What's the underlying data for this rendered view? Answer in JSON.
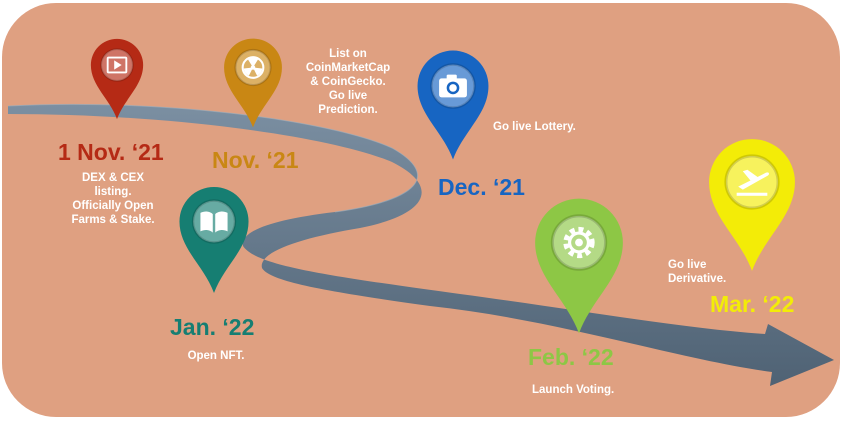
{
  "colors": {
    "background": "#dfa081",
    "road": "#596d80",
    "red": "#b52a15",
    "orange": "#c98714",
    "teal": "#167e72",
    "blue": "#1765c2",
    "green": "#8dc745",
    "yellow": "#f3ec07"
  },
  "milestones": [
    {
      "date": "1 Nov. ‘21",
      "lines": [
        "DEX & CEX",
        "listing.",
        "Officially Open",
        "Farms & Stake."
      ],
      "color": "#b52a15",
      "icon": "video-icon"
    },
    {
      "date": "Nov. ‘21",
      "lines": [
        "List on",
        "CoinMarketCap",
        "& CoinGecko.",
        "Go live",
        "Prediction."
      ],
      "color": "#c98714",
      "icon": "radiation-icon"
    },
    {
      "date": "Jan. ‘22",
      "lines": [
        "Open NFT."
      ],
      "color": "#167e72",
      "icon": "book-icon"
    },
    {
      "date": "Dec. ‘21",
      "lines": [
        "Go live Lottery."
      ],
      "color": "#1765c2",
      "icon": "camera-icon"
    },
    {
      "date": "Feb. ‘22",
      "lines": [
        "Launch Voting."
      ],
      "color": "#8dc745",
      "icon": "gear-icon"
    },
    {
      "date": "Mar. ‘22",
      "lines": [
        "Go live",
        "Derivative."
      ],
      "color": "#f3ec07",
      "icon": "airplane-icon"
    }
  ]
}
